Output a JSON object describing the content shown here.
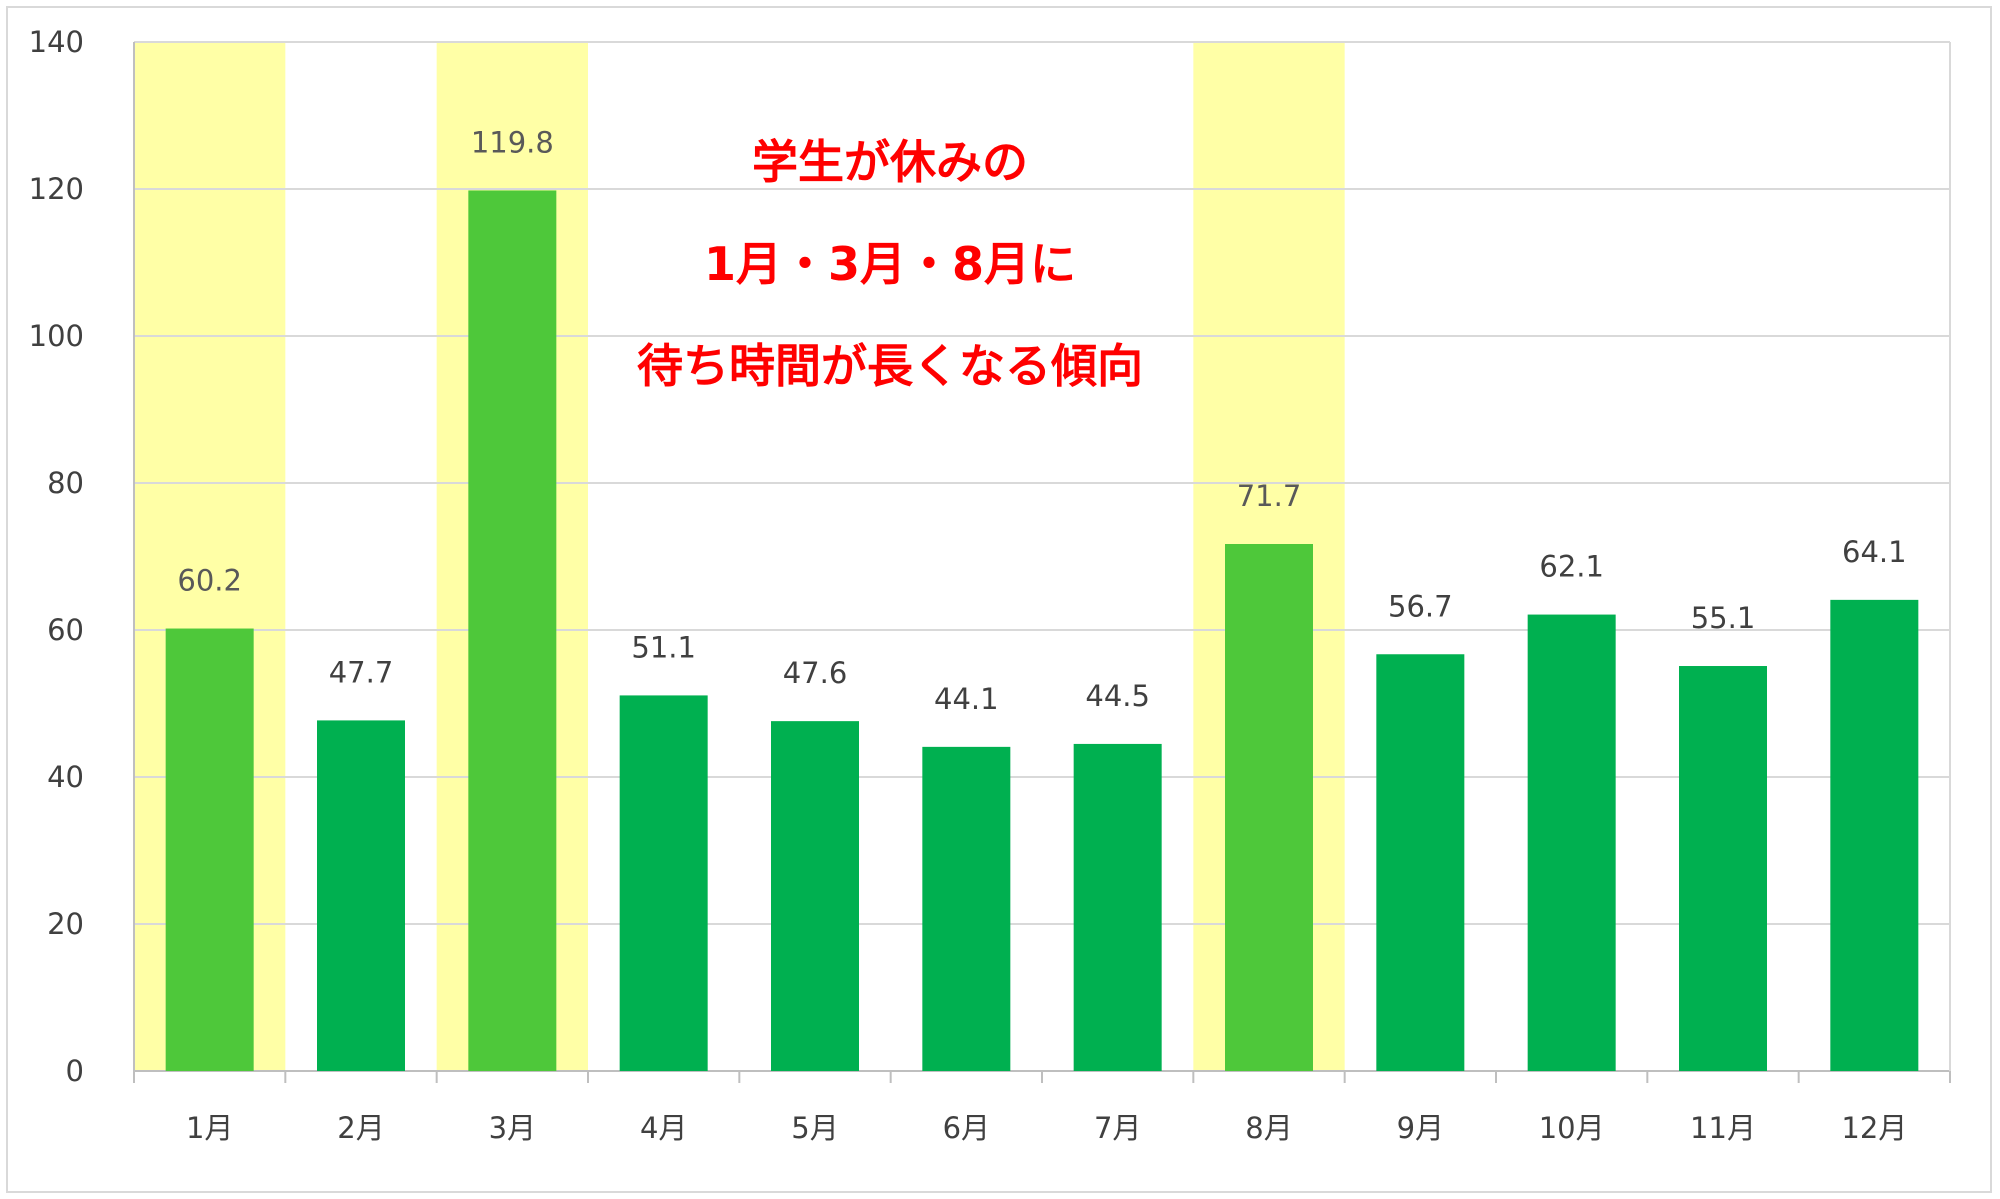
{
  "chart_data": {
    "type": "bar",
    "title": "",
    "xlabel": "",
    "ylabel": "",
    "categories": [
      "1月",
      "2月",
      "3月",
      "4月",
      "5月",
      "6月",
      "7月",
      "8月",
      "9月",
      "10月",
      "11月",
      "12月"
    ],
    "values": [
      60.2,
      47.7,
      119.8,
      51.1,
      47.6,
      44.1,
      44.5,
      71.7,
      56.7,
      62.1,
      55.1,
      64.1
    ],
    "data_labels": [
      "60.2",
      "47.7",
      "119.8",
      "51.1",
      "47.6",
      "44.1",
      "44.5",
      "71.7",
      "56.7",
      "62.1",
      "55.1",
      "64.1"
    ],
    "highlighted": [
      "1月",
      "3月",
      "8月"
    ],
    "ylim": [
      0,
      140
    ],
    "yticks": [
      "0",
      "20",
      "40",
      "60",
      "80",
      "100",
      "120",
      "140"
    ],
    "grid": true,
    "legend": "none",
    "colors": {
      "bar": "#00b050",
      "bar_highlight": "#4ec83a",
      "band_highlight": "#ffffa6",
      "annotation": "#ff0000",
      "grid": "#d9d9d9"
    },
    "annotation": {
      "lines": [
        "学生が休みの",
        "1月・3月・8月に",
        "待ち時間が長くなる傾向"
      ]
    }
  }
}
